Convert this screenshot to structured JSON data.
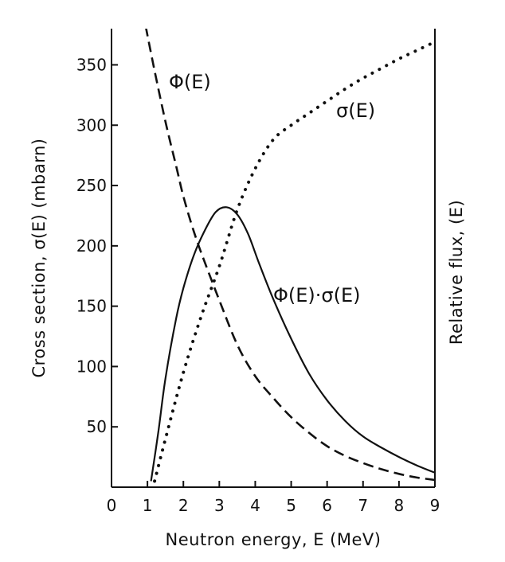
{
  "chart_data": {
    "type": "line",
    "xlabel": "Neutron energy, E (MeV)",
    "ylabel": "Cross section, σ(E) (mbarn)",
    "ylabel_right": "Relative flux, (E)",
    "xlim": [
      0,
      9
    ],
    "ylim": [
      0,
      380
    ],
    "x_ticks": [
      0,
      1,
      2,
      3,
      4,
      5,
      6,
      7,
      8,
      9
    ],
    "y_ticks": [
      50,
      100,
      150,
      200,
      250,
      300,
      350
    ],
    "grid": false,
    "series": [
      {
        "name": "Φ(E)",
        "style": "dashed",
        "x": [
          0.95,
          1.2,
          1.5,
          1.8,
          2.0,
          2.3,
          2.6,
          3.0,
          3.5,
          4.0,
          4.5,
          5.0,
          5.5,
          6.0,
          6.5,
          7.0,
          7.5,
          8.0,
          8.5,
          9.0
        ],
        "y": [
          382,
          345,
          303,
          266,
          241,
          211,
          186,
          155,
          118,
          92,
          74,
          58,
          45,
          34,
          26,
          20,
          15,
          11,
          8,
          6
        ]
      },
      {
        "name": "σ(E)",
        "style": "dotted",
        "x": [
          1.2,
          1.5,
          2.0,
          2.5,
          3.0,
          3.5,
          4.0,
          4.5,
          5.0,
          5.5,
          6.0,
          6.5,
          7.0,
          7.5,
          8.0,
          8.5,
          9.0
        ],
        "y": [
          5,
          40,
          95,
          142,
          183,
          230,
          264,
          288,
          300,
          310,
          320,
          330,
          339,
          347,
          355,
          362,
          369
        ]
      },
      {
        "name": "Φ(E)·σ(E)",
        "style": "solid",
        "x": [
          1.1,
          1.3,
          1.5,
          1.8,
          2.0,
          2.3,
          2.6,
          2.9,
          3.2,
          3.5,
          3.8,
          4.1,
          4.5,
          5.0,
          5.5,
          6.0,
          6.5,
          7.0,
          7.5,
          8.0,
          8.5,
          9.0
        ],
        "y": [
          5,
          45,
          90,
          140,
          165,
          193,
          213,
          228,
          232,
          226,
          210,
          186,
          156,
          123,
          94,
          72,
          55,
          42,
          33,
          25,
          18,
          12
        ]
      }
    ],
    "labels": {
      "phi": "Φ(E)",
      "sigma": "σ(E)",
      "product": "Φ(E)·σ(E)"
    }
  }
}
